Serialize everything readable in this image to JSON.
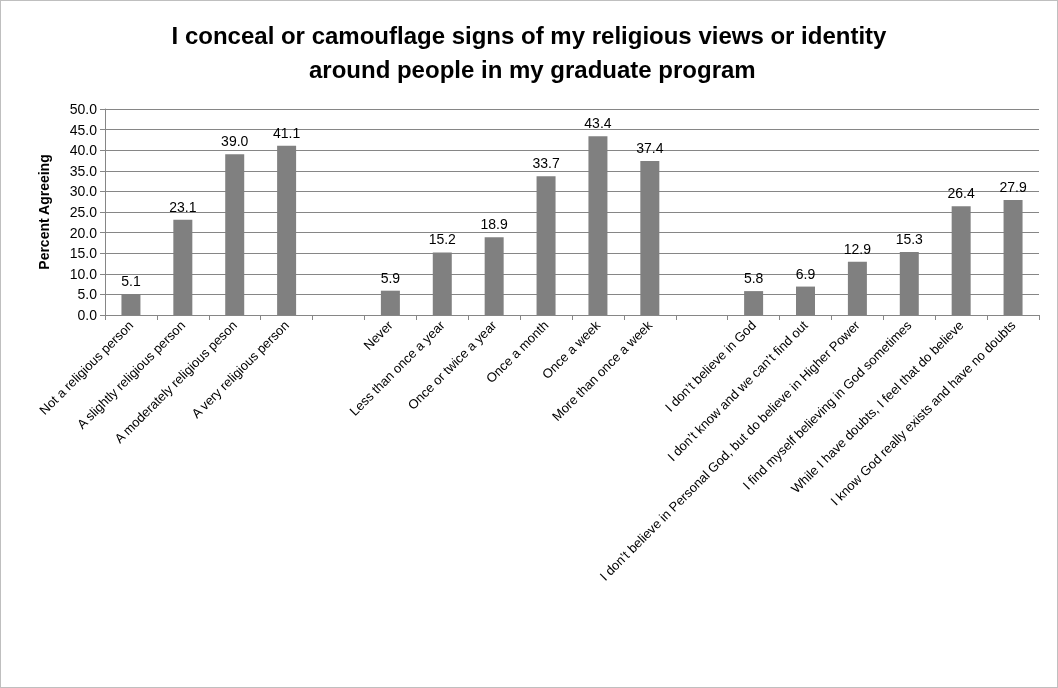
{
  "chart_data": {
    "type": "bar",
    "title": "I conceal or camouflage signs of my religious views or identity around people in my graduate program",
    "ylabel": "Percent Agreeing",
    "categories": [
      "Not a religious person",
      "A slightly religious person",
      "A moderately religious peson",
      "A very religious person",
      null,
      "Never",
      "Less than once a year",
      "Once or twice a year",
      "Once a month",
      "Once a week",
      "More than once a week",
      null,
      "I don’t believe in God",
      "I don’t know and we can’t find out",
      "I don’t believe in Personal God, but do believe in Higher Power",
      "I find myself believing in God sometimes",
      "While I have doubts, I feel that do believe",
      "I know God really exists and have no doubts"
    ],
    "values": [
      5.1,
      23.1,
      39.0,
      41.1,
      null,
      5.9,
      15.2,
      18.9,
      33.7,
      43.4,
      37.4,
      null,
      5.8,
      6.9,
      12.9,
      15.3,
      26.4,
      27.9
    ],
    "value_labels": [
      "5.1",
      "23.1",
      "39.0",
      "41.1",
      null,
      "5.9",
      "15.2",
      "18.9",
      "33.7",
      "43.4",
      "37.4",
      null,
      "5.8",
      "6.9",
      "12.9",
      "15.3",
      "26.4",
      "27.9"
    ],
    "color": "#808080",
    "ylim": [
      0,
      50
    ],
    "yticks": [
      {
        "value": 0,
        "label": "0.0"
      },
      {
        "value": 5,
        "label": "5.0"
      },
      {
        "value": 10,
        "label": "10.0"
      },
      {
        "value": 15,
        "label": "15.0"
      },
      {
        "value": 20,
        "label": "20.0"
      },
      {
        "value": 25,
        "label": "25.0"
      },
      {
        "value": 30,
        "label": "30.0"
      },
      {
        "value": 35,
        "label": "35.0"
      },
      {
        "value": 40,
        "label": "40.0"
      },
      {
        "value": 45,
        "label": "45.0"
      },
      {
        "value": 50,
        "label": "50.0"
      }
    ],
    "grid": "y"
  }
}
